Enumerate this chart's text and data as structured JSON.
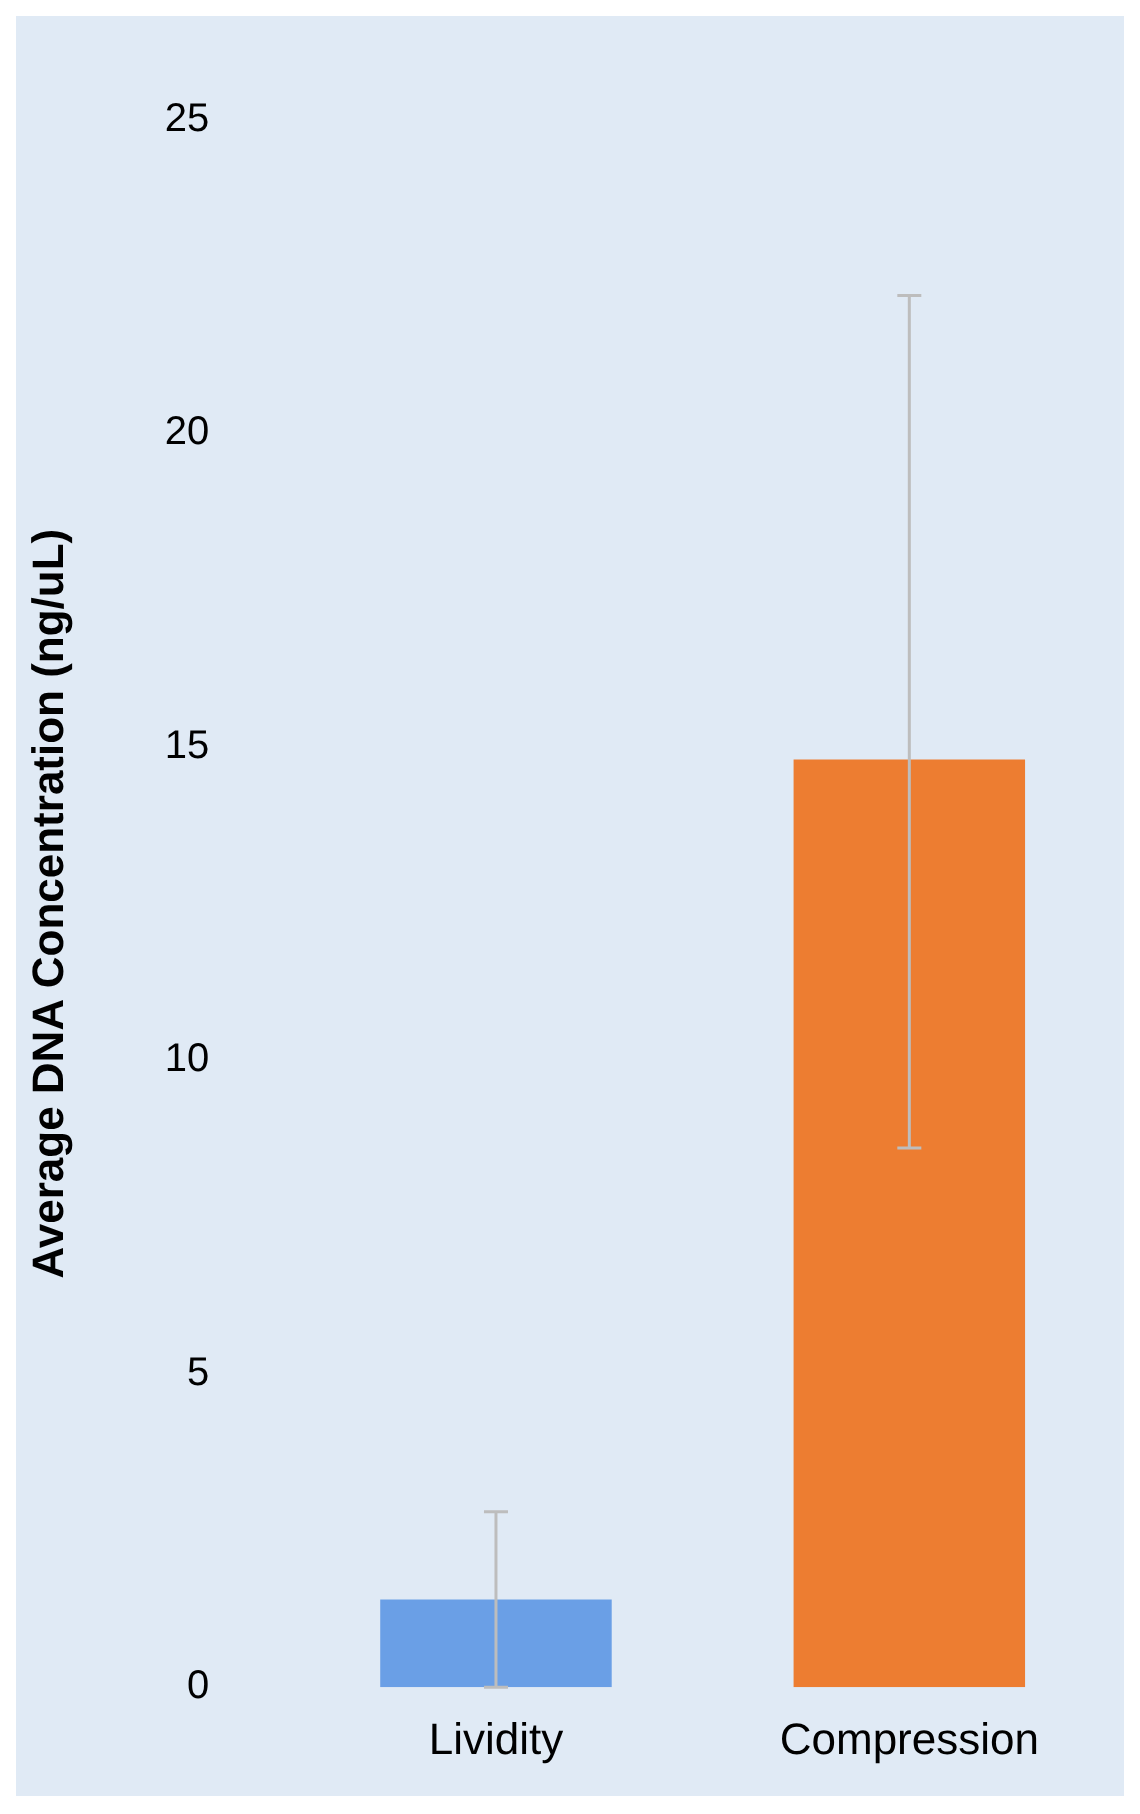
{
  "chart_data": {
    "type": "bar",
    "ylabel": "Average DNA Concentration (ng/uL)",
    "categories": [
      "Lividity",
      "Compression"
    ],
    "values": [
      1.4,
      14.8
    ],
    "colors": [
      "#6a9fe6",
      "#ed7d31"
    ],
    "errors": [
      [
        0,
        2.8
      ],
      [
        8.6,
        22.2
      ]
    ],
    "ylim": [
      0,
      25
    ],
    "yticks": [
      0,
      5,
      10,
      15,
      20,
      25
    ],
    "grid": false,
    "legend": false
  }
}
